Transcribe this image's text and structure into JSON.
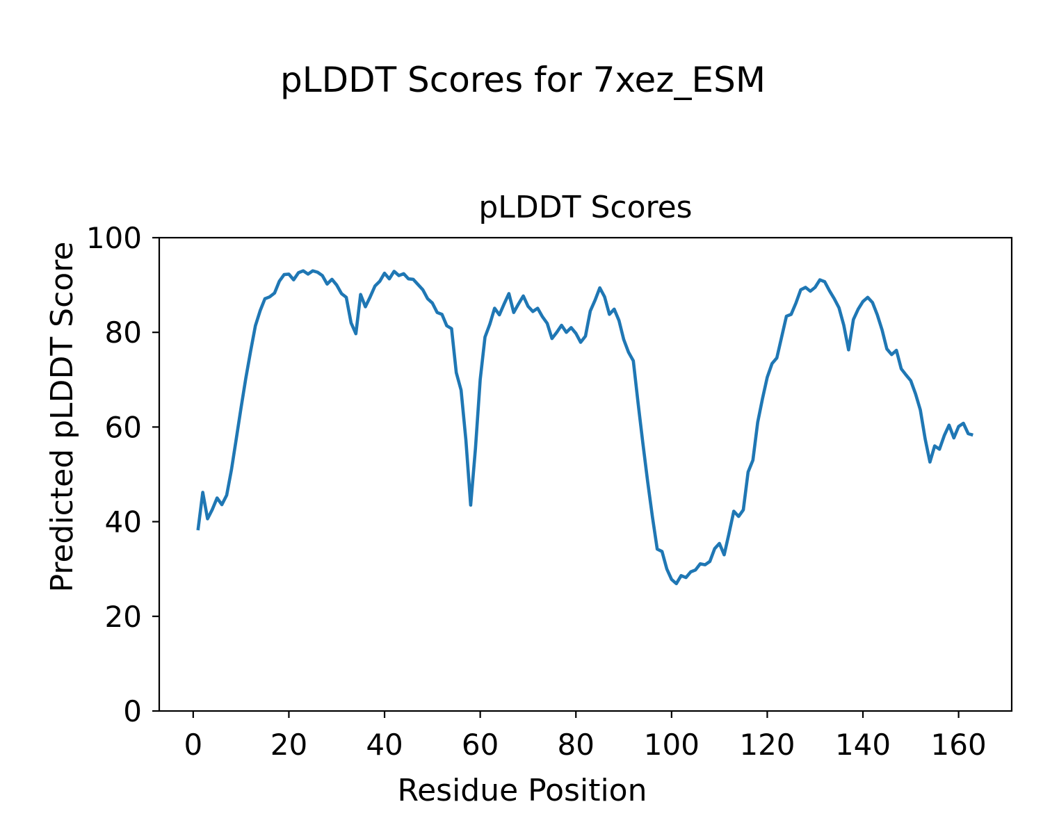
{
  "figure": {
    "suptitle": "pLDDT Scores for 7xez_ESM",
    "background_color": "#ffffff",
    "text_color": "#000000",
    "spine_color": "#000000"
  },
  "chart_data": {
    "type": "line",
    "title": "pLDDT Scores",
    "xlabel": "Residue Position",
    "ylabel": "Predicted pLDDT Score",
    "xlim": [
      -7.1,
      171.1
    ],
    "ylim": [
      0,
      100
    ],
    "x_ticks": [
      0,
      20,
      40,
      60,
      80,
      100,
      120,
      140,
      160
    ],
    "y_ticks": [
      0,
      20,
      40,
      60,
      80,
      100
    ],
    "grid": false,
    "legend": "none",
    "line_color": "#1f77b4",
    "line_width": 4.6,
    "series": [
      {
        "name": "pLDDT",
        "x": [
          1,
          2,
          3,
          4,
          5,
          6,
          7,
          8,
          9,
          10,
          11,
          12,
          13,
          14,
          15,
          16,
          17,
          18,
          19,
          20,
          21,
          22,
          23,
          24,
          25,
          26,
          27,
          28,
          29,
          30,
          31,
          32,
          33,
          34,
          35,
          36,
          37,
          38,
          39,
          40,
          41,
          42,
          43,
          44,
          45,
          46,
          47,
          48,
          49,
          50,
          51,
          52,
          53,
          54,
          55,
          56,
          57,
          58,
          59,
          60,
          61,
          62,
          63,
          64,
          65,
          66,
          67,
          68,
          69,
          70,
          71,
          72,
          73,
          74,
          75,
          76,
          77,
          78,
          79,
          80,
          81,
          82,
          83,
          84,
          85,
          86,
          87,
          88,
          89,
          90,
          91,
          92,
          93,
          94,
          95,
          96,
          97,
          98,
          99,
          100,
          101,
          102,
          103,
          104,
          105,
          106,
          107,
          108,
          109,
          110,
          111,
          112,
          113,
          114,
          115,
          116,
          117,
          118,
          119,
          120,
          121,
          122,
          123,
          124,
          125,
          126,
          127,
          128,
          129,
          130,
          131,
          132,
          133,
          134,
          135,
          136,
          137,
          138,
          139,
          140,
          141,
          142,
          143,
          144,
          145,
          146,
          147,
          148,
          149,
          150,
          151,
          152,
          153,
          154,
          155,
          156,
          157,
          158,
          159,
          160,
          161,
          162,
          163
        ],
        "y": [
          38.2,
          46.2,
          40.6,
          42.6,
          45.0,
          43.6,
          45.6,
          51.0,
          57.5,
          64.0,
          70.3,
          76.0,
          81.4,
          84.6,
          87.1,
          87.5,
          88.3,
          90.8,
          92.2,
          92.3,
          91.1,
          92.6,
          93.0,
          92.3,
          93.0,
          92.7,
          92.0,
          90.2,
          91.2,
          90.0,
          88.2,
          87.4,
          82.0,
          79.7,
          88.0,
          85.4,
          87.5,
          89.8,
          90.8,
          92.5,
          91.3,
          92.9,
          92.0,
          92.4,
          91.3,
          91.2,
          90.1,
          89.0,
          87.1,
          86.2,
          84.2,
          83.8,
          81.4,
          80.8,
          71.5,
          67.8,
          57.3,
          43.5,
          55.5,
          70.0,
          79.0,
          81.7,
          85.1,
          83.7,
          86.0,
          88.2,
          84.2,
          86.0,
          87.7,
          85.5,
          84.4,
          85.1,
          83.3,
          81.9,
          78.7,
          80.0,
          81.5,
          80.0,
          81.0,
          79.8,
          77.9,
          79.2,
          84.5,
          86.8,
          89.4,
          87.5,
          83.8,
          84.9,
          82.5,
          78.5,
          75.8,
          74.0,
          65.0,
          56.5,
          48.5,
          41.0,
          34.2,
          33.7,
          30.0,
          27.8,
          26.9,
          28.6,
          28.2,
          29.4,
          29.8,
          31.1,
          30.9,
          31.6,
          34.3,
          35.4,
          33.0,
          37.5,
          42.2,
          41.1,
          42.5,
          50.5,
          53.0,
          61.0,
          66.0,
          70.5,
          73.4,
          74.6,
          79.0,
          83.4,
          83.8,
          86.2,
          89.0,
          89.5,
          88.7,
          89.5,
          91.1,
          90.7,
          88.8,
          87.1,
          85.2,
          81.5,
          76.3,
          82.7,
          84.9,
          86.5,
          87.4,
          86.3,
          83.7,
          80.5,
          76.5,
          75.3,
          76.2,
          72.3,
          71.0,
          69.8,
          67.0,
          63.6,
          57.5,
          52.6,
          56.0,
          55.3,
          58.2,
          60.4,
          57.7,
          60.1,
          60.8,
          58.6,
          58.3
        ]
      }
    ]
  }
}
